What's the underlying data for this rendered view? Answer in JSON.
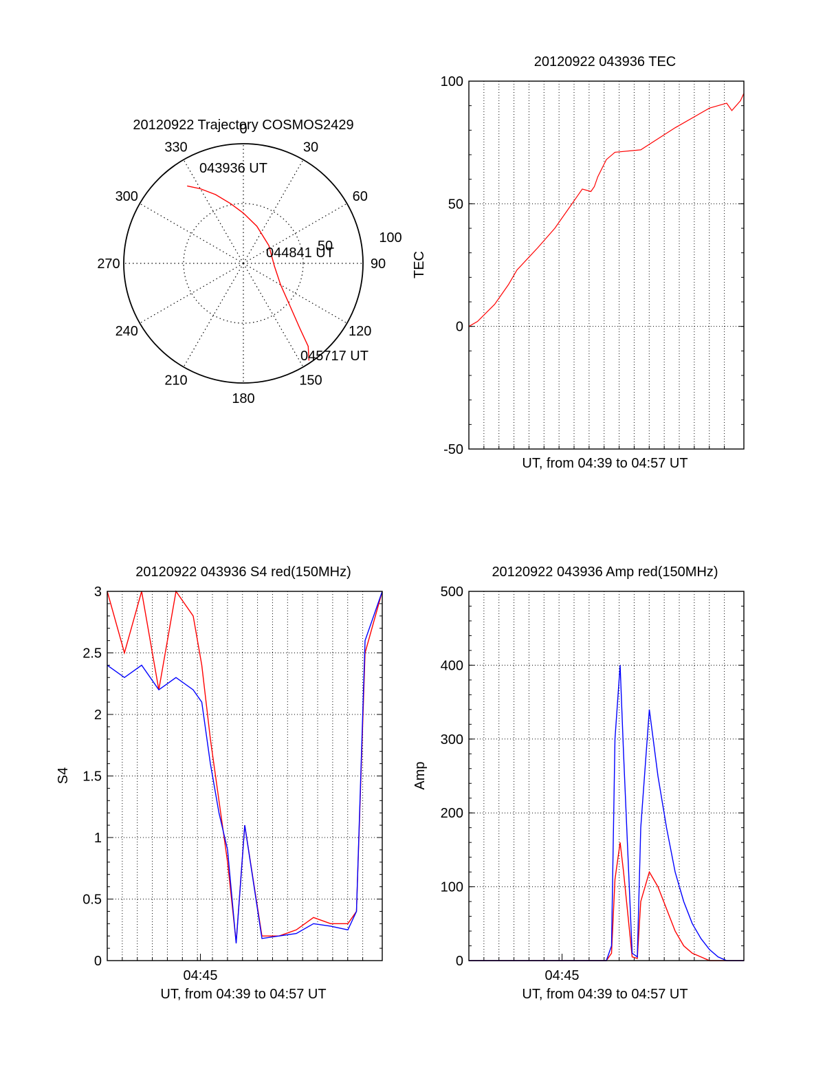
{
  "colors": {
    "red": "#ff0000",
    "blue": "#0000ff",
    "axis": "#000000"
  },
  "chart_data": [
    {
      "type": "polar",
      "title": "20120922 Trajectory COSMOS2429",
      "azimuth_labels": [
        "0",
        "30",
        "60",
        "90",
        "120",
        "150",
        "180",
        "210",
        "240",
        "270",
        "300",
        "330"
      ],
      "radial_labels": [
        "50",
        "100"
      ],
      "radial_range": [
        0,
        100
      ],
      "grid": true,
      "track": {
        "color": "red",
        "points": [
          {
            "az": 324,
            "r": 80
          },
          {
            "az": 330,
            "r": 72
          },
          {
            "az": 338,
            "r": 62
          },
          {
            "az": 348,
            "r": 51
          },
          {
            "az": 0,
            "r": 42
          },
          {
            "az": 20,
            "r": 33
          },
          {
            "az": 55,
            "r": 26
          },
          {
            "az": 95,
            "r": 26
          },
          {
            "az": 120,
            "r": 36
          },
          {
            "az": 132,
            "r": 52
          },
          {
            "az": 139,
            "r": 72
          },
          {
            "az": 142,
            "r": 88
          },
          {
            "az": 146,
            "r": 98
          }
        ]
      },
      "annotations": [
        "043936 UT",
        "044841 UT",
        "045717 UT"
      ]
    },
    {
      "type": "line",
      "title": "20120922 043936 TEC",
      "xlabel": "UT, from 04:39 to 04:57 UT",
      "ylabel": "TEC",
      "yticks": [
        "100",
        "50",
        "0",
        "-50"
      ],
      "ylim": [
        -50,
        100
      ],
      "grid": true,
      "series": [
        {
          "color": "red",
          "x": [
            0,
            0.5,
            1.5,
            2.3,
            2.8,
            3.6,
            4.0,
            5.0,
            5.8,
            6.2,
            6.6,
            7.1,
            7.3,
            7.5,
            8.0,
            8.5,
            10.0,
            12.0,
            14.0,
            15.0,
            15.3,
            15.8,
            16.0
          ],
          "y": [
            0,
            2,
            9,
            17,
            23,
            29,
            32,
            40,
            48,
            52,
            56,
            55,
            57,
            61,
            68,
            71,
            72,
            81,
            89,
            91,
            88,
            92,
            95
          ]
        }
      ]
    },
    {
      "type": "line",
      "title": "20120922 043936 S4 red(150MHz)",
      "xlabel": "UT, from 04:39 to 04:57 UT",
      "ylabel": "S4",
      "xticks": [
        "04:45"
      ],
      "yticks": [
        "0",
        "0.5",
        "1",
        "1.5",
        "2",
        "2.5",
        "3"
      ],
      "ylim": [
        0,
        3
      ],
      "grid": true,
      "series": [
        {
          "color": "red",
          "x": [
            0,
            1,
            2,
            3,
            4,
            5,
            5.5,
            6,
            6.5,
            7,
            7.5,
            8,
            9,
            10,
            11,
            12,
            13,
            14,
            14.5,
            15,
            16
          ],
          "y": [
            3,
            2.5,
            3,
            2.2,
            3,
            2.8,
            2.4,
            1.8,
            1.3,
            0.8,
            0.15,
            1.1,
            0.2,
            0.2,
            0.25,
            0.35,
            0.3,
            0.3,
            0.4,
            2.5,
            3
          ]
        },
        {
          "color": "blue",
          "x": [
            0,
            1,
            2,
            3,
            4,
            5,
            5.5,
            6,
            6.5,
            7,
            7.5,
            8,
            9,
            10,
            11,
            12,
            13,
            14,
            14.5,
            15,
            16
          ],
          "y": [
            2.4,
            2.3,
            2.4,
            2.2,
            2.3,
            2.2,
            2.1,
            1.6,
            1.2,
            0.9,
            0.14,
            1.1,
            0.18,
            0.2,
            0.22,
            0.3,
            0.28,
            0.25,
            0.4,
            2.6,
            3
          ]
        }
      ]
    },
    {
      "type": "line",
      "title": "20120922 043936 Amp red(150MHz)",
      "xlabel": "UT, from 04:39 to 04:57 UT",
      "ylabel": "Amp",
      "xticks": [
        "04:45"
      ],
      "yticks": [
        "0",
        "100",
        "200",
        "300",
        "400",
        "500"
      ],
      "ylim": [
        0,
        500
      ],
      "grid": true,
      "series": [
        {
          "color": "red",
          "x": [
            0,
            8,
            8.3,
            8.5,
            8.8,
            9,
            9.5,
            9.8,
            10,
            10.5,
            11,
            11.5,
            12,
            12.5,
            13,
            13.5,
            14,
            15,
            16
          ],
          "y": [
            0,
            0,
            10,
            110,
            160,
            120,
            5,
            3,
            80,
            120,
            100,
            70,
            40,
            20,
            10,
            5,
            0,
            0,
            0
          ]
        },
        {
          "color": "blue",
          "x": [
            0,
            8,
            8.3,
            8.5,
            8.8,
            9,
            9.5,
            9.8,
            10,
            10.5,
            11,
            11.5,
            12,
            12.5,
            13,
            13.5,
            14,
            14.5,
            15,
            16
          ],
          "y": [
            0,
            0,
            20,
            300,
            400,
            280,
            10,
            5,
            180,
            340,
            250,
            180,
            120,
            80,
            50,
            30,
            15,
            5,
            0,
            0
          ]
        }
      ]
    }
  ]
}
